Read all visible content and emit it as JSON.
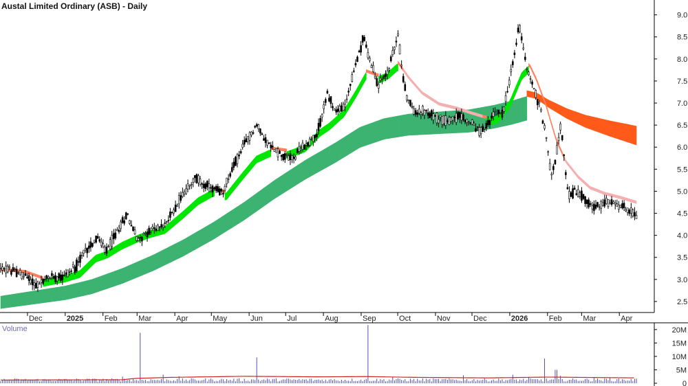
{
  "chart_data": {
    "type": "candlestick",
    "title": "Austal Limited Ordinary (ASB) - Daily",
    "volume_label": "Volume",
    "price_ylim": [
      2.25,
      9.15
    ],
    "price_ticks": [
      "9.0",
      "8.5",
      "8.0",
      "7.5",
      "7.0",
      "6.5",
      "6.0",
      "5.5",
      "5.0",
      "4.5",
      "4.0",
      "3.5",
      "3.0",
      "2.5"
    ],
    "volume_ticks": [
      "20M",
      "15M",
      "10M",
      "5M",
      "0"
    ],
    "volume_ylim": [
      0,
      22
    ],
    "x_labels": [
      {
        "label": "Dec",
        "day": 22,
        "bold": false
      },
      {
        "label": "2025",
        "day": 53,
        "bold": true
      },
      {
        "label": "Feb",
        "day": 84,
        "bold": false
      },
      {
        "label": "Mar",
        "day": 112,
        "bold": false
      },
      {
        "label": "Apr",
        "day": 143,
        "bold": false
      },
      {
        "label": "May",
        "day": 173,
        "bold": false
      },
      {
        "label": "Jun",
        "day": 204,
        "bold": false
      },
      {
        "label": "Jul",
        "day": 234,
        "bold": false
      },
      {
        "label": "Aug",
        "day": 265,
        "bold": false
      },
      {
        "label": "Sep",
        "day": 296,
        "bold": false
      },
      {
        "label": "Oct",
        "day": 326,
        "bold": false
      },
      {
        "label": "Nov",
        "day": 357,
        "bold": false
      },
      {
        "label": "Dec",
        "day": 387,
        "bold": false
      },
      {
        "label": "2026",
        "day": 418,
        "bold": true
      },
      {
        "label": "Feb",
        "day": 449,
        "bold": false
      },
      {
        "label": "Mar",
        "day": 477,
        "bold": false
      },
      {
        "label": "Apr",
        "day": 508,
        "bold": false
      }
    ],
    "price_anchors": [
      [
        0,
        3.25
      ],
      [
        10,
        3.2
      ],
      [
        22,
        3.05
      ],
      [
        30,
        2.85
      ],
      [
        40,
        3.05
      ],
      [
        53,
        3.1
      ],
      [
        62,
        3.3
      ],
      [
        72,
        3.75
      ],
      [
        80,
        3.95
      ],
      [
        86,
        3.6
      ],
      [
        95,
        4.05
      ],
      [
        104,
        4.5
      ],
      [
        112,
        3.9
      ],
      [
        120,
        4.05
      ],
      [
        135,
        4.25
      ],
      [
        150,
        4.95
      ],
      [
        160,
        5.3
      ],
      [
        170,
        5.1
      ],
      [
        182,
        4.95
      ],
      [
        190,
        5.5
      ],
      [
        200,
        6.05
      ],
      [
        210,
        6.5
      ],
      [
        220,
        6.05
      ],
      [
        230,
        5.85
      ],
      [
        240,
        5.75
      ],
      [
        250,
        6.05
      ],
      [
        260,
        6.3
      ],
      [
        268,
        7.2
      ],
      [
        275,
        6.8
      ],
      [
        282,
        6.9
      ],
      [
        290,
        7.7
      ],
      [
        298,
        8.5
      ],
      [
        304,
        7.9
      ],
      [
        310,
        7.4
      ],
      [
        318,
        7.7
      ],
      [
        326,
        8.55
      ],
      [
        332,
        7.3
      ],
      [
        338,
        6.85
      ],
      [
        346,
        6.8
      ],
      [
        356,
        6.7
      ],
      [
        366,
        6.6
      ],
      [
        376,
        6.7
      ],
      [
        386,
        6.55
      ],
      [
        394,
        6.35
      ],
      [
        400,
        6.5
      ],
      [
        406,
        6.8
      ],
      [
        412,
        6.75
      ],
      [
        420,
        7.8
      ],
      [
        426,
        8.8
      ],
      [
        432,
        7.8
      ],
      [
        438,
        7.3
      ],
      [
        444,
        6.8
      ],
      [
        448,
        6.2
      ],
      [
        452,
        5.35
      ],
      [
        456,
        5.8
      ],
      [
        460,
        6.45
      ],
      [
        466,
        4.9
      ],
      [
        472,
        5.0
      ],
      [
        480,
        4.85
      ],
      [
        488,
        4.6
      ],
      [
        496,
        4.75
      ],
      [
        504,
        4.7
      ],
      [
        512,
        4.65
      ],
      [
        518,
        4.55
      ],
      [
        522,
        4.4
      ]
    ],
    "ema_short_anchors": [
      [
        0,
        3.2
      ],
      [
        20,
        3.15
      ],
      [
        35,
        3.0
      ],
      [
        53,
        3.1
      ],
      [
        65,
        3.2
      ],
      [
        78,
        3.55
      ],
      [
        88,
        3.65
      ],
      [
        100,
        3.85
      ],
      [
        112,
        4.0
      ],
      [
        122,
        4.1
      ],
      [
        135,
        4.2
      ],
      [
        150,
        4.55
      ],
      [
        162,
        4.85
      ],
      [
        175,
        5.05
      ],
      [
        185,
        4.95
      ],
      [
        195,
        5.3
      ],
      [
        210,
        5.8
      ],
      [
        222,
        5.95
      ],
      [
        235,
        5.9
      ],
      [
        250,
        6.05
      ],
      [
        262,
        6.4
      ],
      [
        270,
        6.55
      ],
      [
        282,
        6.85
      ],
      [
        292,
        7.3
      ],
      [
        300,
        7.7
      ],
      [
        310,
        7.6
      ],
      [
        318,
        7.7
      ],
      [
        326,
        7.9
      ],
      [
        335,
        7.55
      ],
      [
        346,
        7.2
      ],
      [
        360,
        6.95
      ],
      [
        375,
        6.85
      ],
      [
        386,
        6.75
      ],
      [
        398,
        6.65
      ],
      [
        408,
        6.7
      ],
      [
        418,
        7.05
      ],
      [
        428,
        7.7
      ],
      [
        434,
        7.85
      ],
      [
        440,
        7.5
      ],
      [
        448,
        6.9
      ],
      [
        456,
        6.15
      ],
      [
        464,
        5.65
      ],
      [
        474,
        5.3
      ],
      [
        484,
        5.05
      ],
      [
        496,
        4.92
      ],
      [
        510,
        4.82
      ],
      [
        522,
        4.72
      ]
    ],
    "ema_long_anchors": [
      [
        0,
        2.62
      ],
      [
        30,
        2.75
      ],
      [
        53,
        2.85
      ],
      [
        75,
        3.0
      ],
      [
        100,
        3.25
      ],
      [
        125,
        3.55
      ],
      [
        150,
        3.9
      ],
      [
        175,
        4.3
      ],
      [
        200,
        4.75
      ],
      [
        225,
        5.25
      ],
      [
        250,
        5.7
      ],
      [
        275,
        6.1
      ],
      [
        295,
        6.45
      ],
      [
        315,
        6.65
      ],
      [
        335,
        6.75
      ],
      [
        360,
        6.8
      ],
      [
        385,
        6.85
      ],
      [
        405,
        6.95
      ],
      [
        420,
        7.05
      ],
      [
        432,
        7.15
      ],
      [
        440,
        7.1
      ],
      [
        450,
        6.9
      ],
      [
        465,
        6.65
      ],
      [
        480,
        6.45
      ],
      [
        500,
        6.25
      ],
      [
        522,
        6.05
      ]
    ],
    "volume_baseline": 1.3,
    "volume_spikes": [
      [
        114,
        18.8
      ],
      [
        210,
        9.6
      ],
      [
        302,
        21.7
      ],
      [
        447,
        9.2
      ],
      [
        456,
        5.0
      ],
      [
        134,
        3.2
      ],
      [
        147,
        2.6
      ],
      [
        100,
        2.5
      ],
      [
        322,
        2.2
      ],
      [
        380,
        3.0
      ],
      [
        421,
        3.2
      ],
      [
        434,
        2.4
      ],
      [
        460,
        2.8
      ],
      [
        487,
        2.0
      ],
      [
        500,
        2.1
      ]
    ],
    "volume_avg": [
      [
        0,
        1.2
      ],
      [
        100,
        1.3
      ],
      [
        110,
        1.8
      ],
      [
        140,
        2.2
      ],
      [
        200,
        2.6
      ],
      [
        260,
        2.4
      ],
      [
        300,
        2.5
      ],
      [
        340,
        2.2
      ],
      [
        400,
        2.0
      ],
      [
        450,
        2.3
      ],
      [
        500,
        2.1
      ],
      [
        522,
        2.0
      ]
    ],
    "series": [
      {
        "type": "band",
        "role": "short-guppy"
      },
      {
        "type": "band",
        "role": "long-guppy"
      }
    ],
    "colors": {
      "candle": "#000000",
      "short_up": "#00e600",
      "short_down": "#ff8060",
      "short_fade": "#f4b0b0",
      "long_up": "#3cb371",
      "long_down": "#ff5a1a",
      "volume_bar": "#5050b0",
      "volume_avg": "#cc2222",
      "grid": "#999999"
    },
    "grid": false,
    "legend": "none"
  }
}
